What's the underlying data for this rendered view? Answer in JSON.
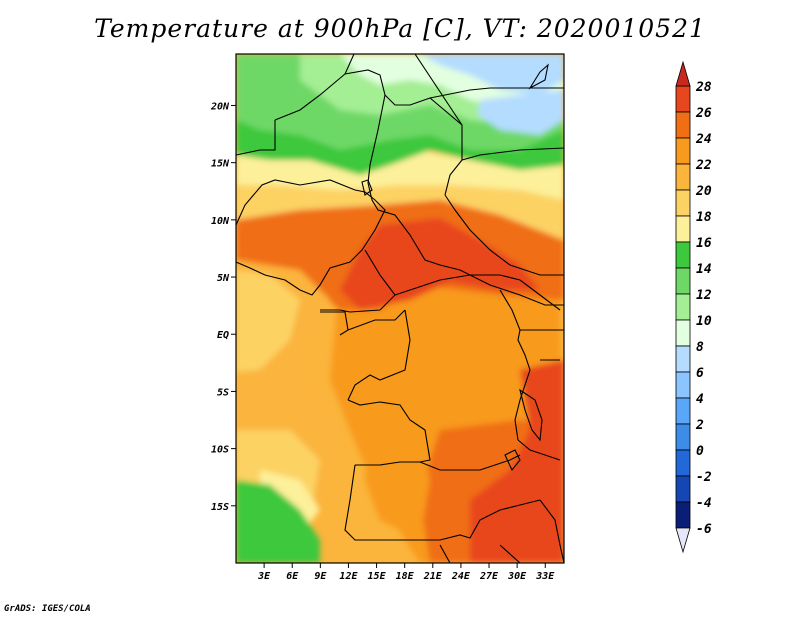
{
  "title": "Temperature at 900hPa [C], VT: 2020010521",
  "credit": "GrADS: IGES/COLA",
  "map": {
    "lat_labels": [
      "20N",
      "15N",
      "10N",
      "5N",
      "EQ",
      "5S",
      "10S",
      "15S"
    ],
    "lon_labels": [
      "3E",
      "6E",
      "9E",
      "12E",
      "15E",
      "18E",
      "21E",
      "24E",
      "27E",
      "30E",
      "33E"
    ],
    "lat_values": [
      20,
      15,
      10,
      5,
      0,
      -5,
      -10,
      -15
    ],
    "lon_values": [
      3,
      6,
      9,
      12,
      15,
      18,
      21,
      24,
      27,
      30,
      33
    ],
    "extent": {
      "lon_min": 0,
      "lon_max": 35,
      "lat_min": -20,
      "lat_max": 24.5
    }
  },
  "colorbar": {
    "labels": [
      "28",
      "26",
      "24",
      "22",
      "20",
      "18",
      "16",
      "14",
      "12",
      "10",
      "8",
      "6",
      "4",
      "2",
      "0",
      "-2",
      "-4",
      "-6"
    ],
    "colors": {
      "above": "#c8281e",
      "c26_28": "#e8461e",
      "c24_26": "#f06e14",
      "c22_24": "#f89a1e",
      "c20_22": "#fbb43c",
      "c18_20": "#fcd264",
      "c16_18": "#fdf09a",
      "c14_16": "#3ec83e",
      "c12_14": "#6ed866",
      "c10_12": "#a4ee94",
      "c8_10": "#e2ffe0",
      "c6_8": "#b4dcff",
      "c4_6": "#8cc4ff",
      "c2_4": "#5aa6f8",
      "c0_2": "#3c8ce8",
      "cm2_0": "#2268d8",
      "cm4_m2": "#1446b4",
      "cm6_m4": "#0a1e78",
      "below": "#e6e6fa"
    }
  }
}
